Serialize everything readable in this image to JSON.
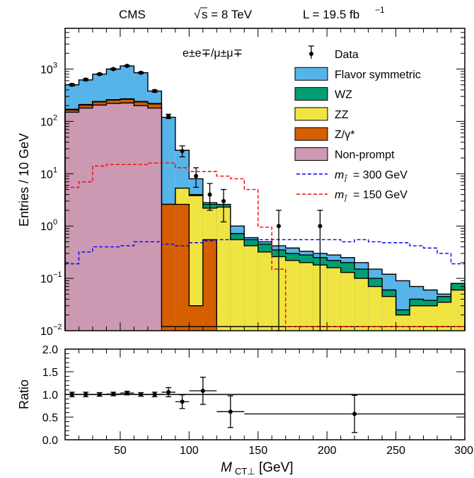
{
  "header": {
    "experiment": "CMS",
    "energy_sqrt": "√",
    "energy_rest": "s = 8 TeV",
    "lumi": "L = 19.5 fb",
    "lumi_exp": "−1"
  },
  "chart_data": [
    {
      "type": "bar",
      "stacked": true,
      "log_y": true,
      "annotation": "e±e∓/μ±μ∓",
      "ylabel": "Entries / 10 GeV",
      "ylim": [
        0.01,
        6000
      ],
      "xlim": [
        10,
        300
      ],
      "y_ticks": [
        {
          "value": 0.01,
          "label": "10",
          "exp": "−2"
        },
        {
          "value": 0.1,
          "label": "10",
          "exp": "−1"
        },
        {
          "value": 1,
          "label": "10",
          "exp": "0"
        },
        {
          "value": 10,
          "label": "10",
          "exp": "1"
        },
        {
          "value": 100,
          "label": "10",
          "exp": "2"
        },
        {
          "value": 1000,
          "label": "10",
          "exp": "3"
        }
      ],
      "bin_edges": [
        10,
        20,
        30,
        40,
        50,
        60,
        70,
        80,
        90,
        100,
        110,
        120,
        130,
        140,
        150,
        160,
        170,
        180,
        190,
        200,
        210,
        220,
        230,
        240,
        250,
        260,
        270,
        280,
        290,
        300
      ],
      "stack_totals": [
        {
          "name": "Flavor symmetric",
          "color": "#56b4e9",
          "values": [
            500,
            620,
            800,
            1000,
            1150,
            850,
            380,
            120,
            28,
            8,
            2.8,
            1.8,
            1.0,
            0.6,
            0.5,
            0.42,
            0.38,
            0.33,
            0.3,
            0.28,
            0.25,
            0.2,
            0.15,
            0.12,
            0.09,
            0.07,
            0.06,
            0.05,
            0.07
          ]
        },
        {
          "name": "WZ",
          "color": "#009e73",
          "values": [
            170,
            210,
            240,
            260,
            270,
            240,
            220,
            2.6,
            4.2,
            4.0,
            2.6,
            2.6,
            0.72,
            0.55,
            0.45,
            0.35,
            0.3,
            0.28,
            0.25,
            0.22,
            0.2,
            0.15,
            0.1,
            0.06,
            0.025,
            0.04,
            0.038,
            0.045,
            0.08
          ]
        },
        {
          "name": "ZZ",
          "color": "#f0e442",
          "values": [
            165,
            205,
            235,
            255,
            265,
            235,
            215,
            2.6,
            5.3,
            3.8,
            2.2,
            2.3,
            0.55,
            0.42,
            0.32,
            0.26,
            0.22,
            0.2,
            0.18,
            0.16,
            0.13,
            0.1,
            0.07,
            0.045,
            0.02,
            0.03,
            0.03,
            0.035,
            0.06
          ]
        },
        {
          "name": "Z/γ*",
          "color": "#d55e00",
          "values": [
            165,
            205,
            235,
            255,
            265,
            235,
            215,
            2.6,
            2.6,
            0.03,
            0.55,
            0.012,
            0.012,
            0.012,
            0.012,
            0.012,
            0.012,
            0.012,
            0.012,
            0.012,
            0.012,
            0.012,
            0.012,
            0.012,
            0.012,
            0.012,
            0.012,
            0.012,
            0.012
          ]
        },
        {
          "name": "Non-prompt",
          "color": "#cc99b2",
          "values": [
            150,
            180,
            205,
            220,
            225,
            200,
            180,
            0.012,
            0.012,
            0.012,
            0.012,
            0.012,
            0.012,
            0.012,
            0.012,
            0.012,
            0.012,
            0.012,
            0.012,
            0.012,
            0.012,
            0.012,
            0.012,
            0.012,
            0.012,
            0.012,
            0.012,
            0.012,
            0.012
          ]
        }
      ],
      "signals": [
        {
          "name": "m_l̃ = 300 GeV",
          "color": "#0000ff",
          "values": [
            0.19,
            0.32,
            0.4,
            0.4,
            0.42,
            0.5,
            0.5,
            0.45,
            0.42,
            0.48,
            0.52,
            0.55,
            0.55,
            0.55,
            0.55,
            0.55,
            0.55,
            0.55,
            0.55,
            0.55,
            0.5,
            0.55,
            0.5,
            0.48,
            0.48,
            0.42,
            0.38,
            0.3,
            0.19
          ]
        },
        {
          "name": "m_l̃ = 150 GeV",
          "color": "#ff0000",
          "values": [
            5.5,
            7,
            14,
            15,
            15,
            15,
            16,
            16,
            13,
            11,
            11,
            9,
            8,
            5,
            0.95,
            0.15,
            0.012,
            0.012,
            0.012,
            0.012,
            0.012,
            0.012,
            0.012,
            0.012,
            0.012,
            0.012,
            0.012,
            0.012,
            0.012
          ]
        }
      ],
      "data_points": [
        {
          "x": 15,
          "y": 500,
          "err_lo": 25,
          "err_hi": 25
        },
        {
          "x": 25,
          "y": 630,
          "err_lo": 30,
          "err_hi": 30
        },
        {
          "x": 35,
          "y": 800,
          "err_lo": 30,
          "err_hi": 30
        },
        {
          "x": 45,
          "y": 1000,
          "err_lo": 35,
          "err_hi": 35
        },
        {
          "x": 55,
          "y": 1150,
          "err_lo": 35,
          "err_hi": 35
        },
        {
          "x": 65,
          "y": 850,
          "err_lo": 30,
          "err_hi": 30
        },
        {
          "x": 75,
          "y": 380,
          "err_lo": 20,
          "err_hi": 20
        },
        {
          "x": 85,
          "y": 125,
          "err_lo": 12,
          "err_hi": 12
        },
        {
          "x": 95,
          "y": 27,
          "err_lo": 6,
          "err_hi": 7
        },
        {
          "x": 105,
          "y": 9,
          "err_lo": 3.5,
          "err_hi": 4
        },
        {
          "x": 115,
          "y": 4,
          "err_lo": 2,
          "err_hi": 2.5
        },
        {
          "x": 125,
          "y": 3,
          "err_lo": 1.8,
          "err_hi": 2.0
        },
        {
          "x": 165,
          "y": 1,
          "err_lo": 0.99,
          "err_hi": 1.0
        },
        {
          "x": 195,
          "y": 1,
          "err_lo": 0.99,
          "err_hi": 1.0
        }
      ],
      "legend": {
        "placement": "top-right",
        "entries": [
          {
            "label": "Data",
            "kind": "data"
          },
          {
            "label": "Flavor symmetric",
            "kind": "box",
            "color": "#56b4e9"
          },
          {
            "label": "WZ",
            "kind": "box",
            "color": "#009e73"
          },
          {
            "label": "ZZ",
            "kind": "box",
            "color": "#f0e442"
          },
          {
            "label": "Z/γ*",
            "kind": "box",
            "color": "#d55e00"
          },
          {
            "label": "Non-prompt",
            "kind": "box",
            "color": "#cc99b2"
          },
          {
            "label": "= 300 GeV",
            "kind": "dash",
            "color": "#0000ff",
            "prefix": "m",
            "sub": "l̃"
          },
          {
            "label": "= 150 GeV",
            "kind": "dash",
            "color": "#ff0000",
            "prefix": "m",
            "sub": "l̃"
          }
        ]
      }
    },
    {
      "type": "scatter",
      "ylabel": "Ratio",
      "xlabel": "M",
      "xlabel_sub": "CT⊥",
      "xlabel_unit": " [GeV]",
      "xlim": [
        10,
        300
      ],
      "ylim": [
        0,
        2
      ],
      "reference_line": 1.0,
      "x_ticks": [
        50,
        100,
        150,
        200,
        250,
        300
      ],
      "y_ticks": [
        "0.0",
        "0.5",
        "1.0",
        "1.5",
        "2.0"
      ],
      "points": [
        {
          "x": 15,
          "y": 1.0,
          "x_lo": 10,
          "x_hi": 20,
          "err": 0.05
        },
        {
          "x": 25,
          "y": 1.0,
          "x_lo": 20,
          "x_hi": 30,
          "err": 0.05
        },
        {
          "x": 35,
          "y": 1.0,
          "x_lo": 30,
          "x_hi": 40,
          "err": 0.04
        },
        {
          "x": 45,
          "y": 1.01,
          "x_lo": 40,
          "x_hi": 50,
          "err": 0.04
        },
        {
          "x": 55,
          "y": 1.03,
          "x_lo": 50,
          "x_hi": 60,
          "err": 0.04
        },
        {
          "x": 65,
          "y": 1.0,
          "x_lo": 60,
          "x_hi": 70,
          "err": 0.04
        },
        {
          "x": 75,
          "y": 1.0,
          "x_lo": 70,
          "x_hi": 80,
          "err": 0.05
        },
        {
          "x": 85,
          "y": 1.05,
          "x_lo": 80,
          "x_hi": 90,
          "err": 0.1
        },
        {
          "x": 95,
          "y": 0.84,
          "x_lo": 90,
          "x_hi": 100,
          "err": 0.15
        },
        {
          "x": 110,
          "y": 1.08,
          "x_lo": 100,
          "x_hi": 120,
          "err": 0.3
        },
        {
          "x": 130,
          "y": 0.62,
          "x_lo": 120,
          "x_hi": 140,
          "err": 0.35
        },
        {
          "x": 220,
          "y": 0.57,
          "x_lo": 140,
          "x_hi": 300,
          "err": 0.41
        }
      ]
    }
  ]
}
